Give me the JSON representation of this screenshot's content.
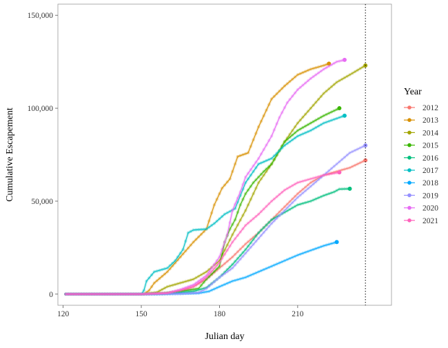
{
  "chart_data": {
    "type": "line",
    "title": "",
    "xlabel": "Julian day",
    "ylabel": "Cumulative Escapement",
    "xlim": [
      118,
      246
    ],
    "ylim": [
      -6000,
      156000
    ],
    "x_ticks": [
      120,
      150,
      180,
      210
    ],
    "y_ticks": [
      0,
      50000,
      100000,
      150000
    ],
    "y_tick_labels": [
      "0",
      "50,000",
      "100,000",
      "150,000"
    ],
    "grid": false,
    "vline": {
      "x": 236,
      "style": "dotted"
    },
    "legend": {
      "title": "Year",
      "position": "right"
    },
    "series": [
      {
        "name": "2012",
        "color": "#F8766D",
        "points": [
          [
            121,
            0
          ],
          [
            150,
            0
          ],
          [
            160,
            400
          ],
          [
            165,
            1500
          ],
          [
            170,
            4000
          ],
          [
            175,
            8000
          ],
          [
            180,
            14000
          ],
          [
            185,
            20000
          ],
          [
            190,
            27000
          ],
          [
            195,
            33000
          ],
          [
            200,
            40000
          ],
          [
            205,
            47000
          ],
          [
            210,
            54000
          ],
          [
            215,
            60000
          ],
          [
            220,
            64000
          ],
          [
            225,
            66000
          ],
          [
            230,
            68000
          ],
          [
            236,
            72000
          ]
        ]
      },
      {
        "name": "2013",
        "color": "#D89000",
        "points": [
          [
            121,
            0
          ],
          [
            151,
            0
          ],
          [
            153,
            2000
          ],
          [
            155,
            6000
          ],
          [
            160,
            12000
          ],
          [
            165,
            20000
          ],
          [
            170,
            28000
          ],
          [
            175,
            35000
          ],
          [
            178,
            48000
          ],
          [
            181,
            57000
          ],
          [
            184,
            62000
          ],
          [
            187,
            74000
          ],
          [
            191,
            76000
          ],
          [
            195,
            90000
          ],
          [
            200,
            105000
          ],
          [
            205,
            112000
          ],
          [
            210,
            118000
          ],
          [
            215,
            121000
          ],
          [
            220,
            123000
          ],
          [
            222,
            124000
          ]
        ]
      },
      {
        "name": "2014",
        "color": "#A3A500",
        "points": [
          [
            121,
            0
          ],
          [
            150,
            0
          ],
          [
            156,
            1000
          ],
          [
            160,
            4000
          ],
          [
            165,
            6000
          ],
          [
            170,
            8000
          ],
          [
            175,
            12000
          ],
          [
            180,
            18000
          ],
          [
            185,
            32000
          ],
          [
            190,
            45000
          ],
          [
            195,
            60000
          ],
          [
            200,
            70000
          ],
          [
            205,
            82000
          ],
          [
            210,
            92000
          ],
          [
            215,
            100000
          ],
          [
            220,
            108000
          ],
          [
            225,
            114000
          ],
          [
            230,
            118000
          ],
          [
            236,
            123000
          ]
        ]
      },
      {
        "name": "2015",
        "color": "#39B600",
        "points": [
          [
            121,
            0
          ],
          [
            150,
            0
          ],
          [
            158,
            500
          ],
          [
            165,
            1500
          ],
          [
            172,
            3000
          ],
          [
            175,
            8000
          ],
          [
            180,
            15000
          ],
          [
            182,
            28000
          ],
          [
            184,
            35000
          ],
          [
            186,
            40000
          ],
          [
            188,
            48000
          ],
          [
            190,
            54000
          ],
          [
            193,
            60000
          ],
          [
            197,
            66000
          ],
          [
            200,
            70000
          ],
          [
            205,
            82000
          ],
          [
            210,
            88000
          ],
          [
            215,
            92000
          ],
          [
            220,
            96000
          ],
          [
            226,
            100000
          ]
        ]
      },
      {
        "name": "2016",
        "color": "#00BF7D",
        "points": [
          [
            121,
            0
          ],
          [
            150,
            0
          ],
          [
            160,
            200
          ],
          [
            170,
            1500
          ],
          [
            175,
            3500
          ],
          [
            180,
            9000
          ],
          [
            185,
            16000
          ],
          [
            190,
            24000
          ],
          [
            195,
            33000
          ],
          [
            200,
            40000
          ],
          [
            205,
            44000
          ],
          [
            210,
            48000
          ],
          [
            215,
            50000
          ],
          [
            220,
            53000
          ],
          [
            224,
            55000
          ],
          [
            226,
            56500
          ],
          [
            230,
            56700
          ]
        ]
      },
      {
        "name": "2017",
        "color": "#00BFC4",
        "points": [
          [
            121,
            0
          ],
          [
            150,
            0
          ],
          [
            151,
            2000
          ],
          [
            152,
            7000
          ],
          [
            155,
            12000
          ],
          [
            160,
            14000
          ],
          [
            163,
            18000
          ],
          [
            166,
            24000
          ],
          [
            168,
            33000
          ],
          [
            170,
            34500
          ],
          [
            175,
            35000
          ],
          [
            178,
            38000
          ],
          [
            182,
            43000
          ],
          [
            186,
            46000
          ],
          [
            190,
            60000
          ],
          [
            195,
            70000
          ],
          [
            200,
            73000
          ],
          [
            205,
            80000
          ],
          [
            210,
            85000
          ],
          [
            215,
            88000
          ],
          [
            220,
            92000
          ],
          [
            228,
            96000
          ]
        ]
      },
      {
        "name": "2018",
        "color": "#00A9FF",
        "points": [
          [
            121,
            0
          ],
          [
            155,
            0
          ],
          [
            165,
            200
          ],
          [
            172,
            500
          ],
          [
            176,
            1500
          ],
          [
            180,
            4000
          ],
          [
            185,
            7000
          ],
          [
            190,
            9000
          ],
          [
            195,
            12000
          ],
          [
            200,
            15000
          ],
          [
            205,
            18000
          ],
          [
            210,
            21000
          ],
          [
            215,
            23500
          ],
          [
            220,
            26000
          ],
          [
            225,
            28000
          ]
        ]
      },
      {
        "name": "2019",
        "color": "#9590FF",
        "points": [
          [
            121,
            0
          ],
          [
            155,
            0
          ],
          [
            165,
            200
          ],
          [
            172,
            800
          ],
          [
            175,
            3000
          ],
          [
            180,
            9000
          ],
          [
            185,
            14000
          ],
          [
            190,
            22000
          ],
          [
            195,
            30000
          ],
          [
            200,
            38000
          ],
          [
            205,
            45000
          ],
          [
            210,
            52000
          ],
          [
            215,
            58000
          ],
          [
            220,
            64000
          ],
          [
            225,
            70000
          ],
          [
            230,
            76000
          ],
          [
            236,
            80000
          ]
        ]
      },
      {
        "name": "2020",
        "color": "#E76BF3",
        "points": [
          [
            121,
            0
          ],
          [
            150,
            0
          ],
          [
            160,
            600
          ],
          [
            165,
            2500
          ],
          [
            170,
            5000
          ],
          [
            175,
            10000
          ],
          [
            180,
            20000
          ],
          [
            183,
            32000
          ],
          [
            185,
            45000
          ],
          [
            188,
            55000
          ],
          [
            190,
            63000
          ],
          [
            195,
            73000
          ],
          [
            200,
            85000
          ],
          [
            203,
            95000
          ],
          [
            206,
            103000
          ],
          [
            210,
            110000
          ],
          [
            215,
            116000
          ],
          [
            220,
            121000
          ],
          [
            225,
            125000
          ],
          [
            228,
            126000
          ]
        ]
      },
      {
        "name": "2021",
        "color": "#FF62BC",
        "points": [
          [
            121,
            0
          ],
          [
            150,
            0
          ],
          [
            160,
            600
          ],
          [
            165,
            2000
          ],
          [
            170,
            4000
          ],
          [
            175,
            9000
          ],
          [
            180,
            17000
          ],
          [
            185,
            28000
          ],
          [
            190,
            37000
          ],
          [
            195,
            43000
          ],
          [
            200,
            50000
          ],
          [
            205,
            56000
          ],
          [
            210,
            60000
          ],
          [
            215,
            62000
          ],
          [
            220,
            64000
          ],
          [
            226,
            65500
          ]
        ]
      }
    ]
  }
}
